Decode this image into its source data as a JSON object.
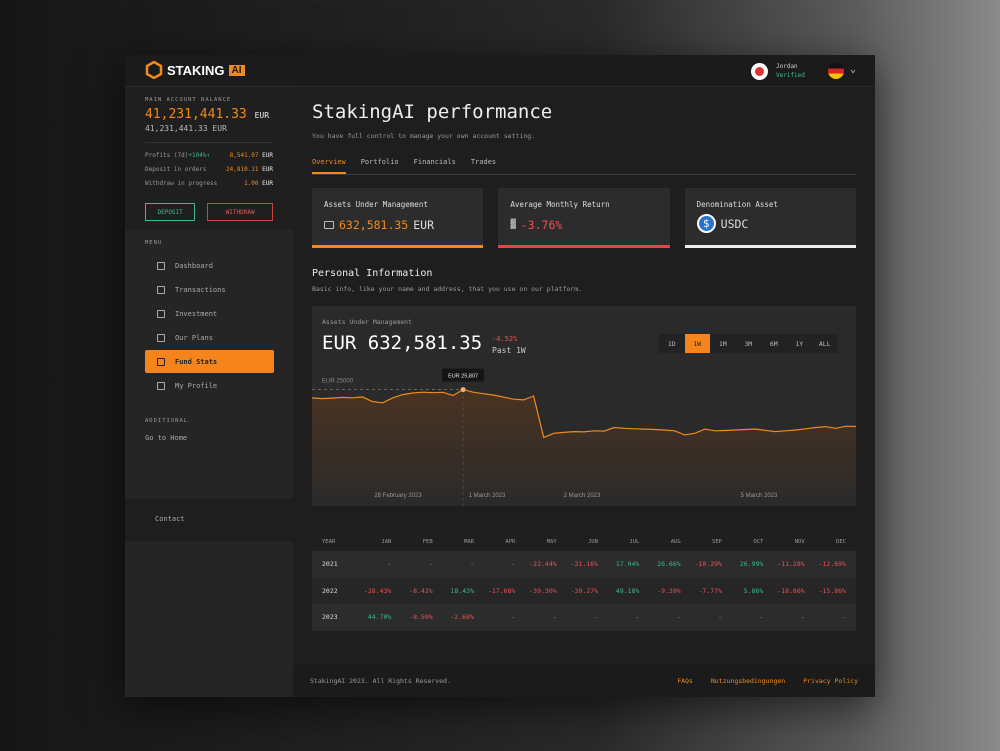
{
  "brand": {
    "name": "STAKING",
    "badge": "AI",
    "accent": "#f08a1c"
  },
  "user": {
    "name": "Jordan",
    "status": "Verified",
    "language_flag": "germany-flag-icon"
  },
  "balance": {
    "label": "MAIN ACCOUNT BALANCE",
    "amount": "41,231,441.33",
    "currency": "EUR",
    "secondary": "41,231,441.33 EUR",
    "rows": [
      {
        "label": "Profits (7d)",
        "extra": "+104%↑",
        "value": "8,541.07",
        "cur": "EUR"
      },
      {
        "label": "Deposit in orders",
        "value": "24,810.11",
        "cur": "EUR"
      },
      {
        "label": "Withdraw in progress",
        "value": "1.00",
        "cur": "EUR"
      }
    ],
    "deposit": "DEPOSIT",
    "withdraw": "WITHDRAW"
  },
  "menu": {
    "label": "MENU",
    "items": [
      {
        "label": "Dashboard"
      },
      {
        "label": "Transactions"
      },
      {
        "label": "Investment"
      },
      {
        "label": "Our Plans"
      },
      {
        "label": "Fund Stats",
        "active": true
      },
      {
        "label": "My Profile"
      }
    ]
  },
  "additional": {
    "label": "ADDITIONAL",
    "go_home": "Go to Home"
  },
  "contact": "Contact",
  "page": {
    "title": "StakingAI performance",
    "desc": "You have full control to manage your own account setting.",
    "tabs": [
      "Overview",
      "Portfolio",
      "Financials",
      "Trades"
    ]
  },
  "cards": [
    {
      "title": "Assets Under Management",
      "value": "632,581.35",
      "unit": "EUR"
    },
    {
      "title": "Average Monthly Return",
      "value": "-3.76%"
    },
    {
      "title": "Denomination Asset",
      "value": "USDC"
    }
  ],
  "personal": {
    "title": "Personal Information",
    "desc": "Basic info, like your name and address, that you use on our platform."
  },
  "chart_data": {
    "type": "area",
    "title": "Assets Under Management",
    "value": "EUR 632,581.35",
    "change": "-4.52%",
    "period": "Past 1W",
    "ranges": [
      "1D",
      "1W",
      "1M",
      "3M",
      "6M",
      "1Y",
      "ALL"
    ],
    "active_range": "1W",
    "ref_label": "EUR 25000",
    "tooltip": "EUR 25,807",
    "x_ticks": [
      "28 February 2023",
      "1 March 2023",
      "2 March 2023",
      "5 March 2023"
    ],
    "ylim": [
      20000,
      27000
    ],
    "line_color": "#f08a1c",
    "values": [
      25300,
      25260,
      25290,
      25330,
      25310,
      25360,
      25080,
      25000,
      25300,
      25500,
      25600,
      25650,
      25620,
      25640,
      25450,
      25807,
      25650,
      25560,
      25480,
      25350,
      25220,
      25180,
      25420,
      22900,
      23150,
      23200,
      23250,
      23230,
      23300,
      23280,
      23500,
      23450,
      23420,
      23400,
      23380,
      23350,
      23300,
      23050,
      23150,
      23400,
      23300,
      23320,
      23350,
      23380,
      23400,
      23330,
      23250,
      23300,
      23350,
      23420,
      23500,
      23550,
      23450,
      23580,
      23560
    ]
  },
  "returns": {
    "headers": [
      "YEAR",
      "JAN",
      "FEB",
      "MAR",
      "APR",
      "MAY",
      "JUN",
      "JUL",
      "AUG",
      "SEP",
      "OCT",
      "NOV",
      "DEC"
    ],
    "rows": [
      [
        "2021",
        "-",
        "-",
        "-",
        "-",
        "-22.44%",
        "-31.16%",
        "17.04%",
        "26.66%",
        "-10.29%",
        "26.99%",
        "-11.28%",
        "-12.69%"
      ],
      [
        "2022",
        "-28.43%",
        "-8.42%",
        "18.43%",
        "-17.68%",
        "-39.30%",
        "-39.27%",
        "49.18%",
        "-9.39%",
        "-7.77%",
        "5.86%",
        "-18.86%",
        "-15.86%"
      ],
      [
        "2023",
        "44.70%",
        "-8.50%",
        "-2.68%",
        "-",
        "-",
        "-",
        "-",
        "-",
        "-",
        "-",
        "-",
        "-"
      ]
    ]
  },
  "footer": {
    "copyright": "StakingAI 2023. All Rights Reserved.",
    "links": [
      "FAQs",
      "Nutzungsbedingungen",
      "Privacy Policy"
    ]
  }
}
